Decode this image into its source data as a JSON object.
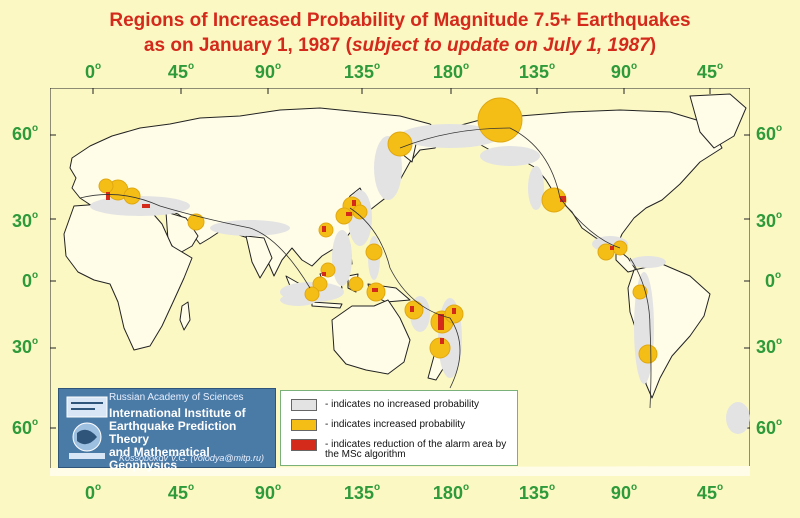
{
  "title": {
    "line1": "Regions of Increased Probability of Magnitude 7.5+ Earthquakes",
    "line2_main": "as on January 1, 1987 (",
    "line2_italic": "subject to update on July 1, 1987",
    "line2_end": ")"
  },
  "axes": {
    "lon_top": [
      "0",
      "45",
      "90",
      "135",
      "180",
      "135",
      "90",
      "45"
    ],
    "lon_bottom": [
      "0",
      "45",
      "90",
      "135",
      "180",
      "135",
      "90",
      "45"
    ],
    "lat_left": [
      "60",
      "30",
      "0",
      "30",
      "60"
    ],
    "lat_right": [
      "60",
      "30",
      "0",
      "30",
      "60"
    ],
    "degree_symbol": "o"
  },
  "institute": {
    "academy": "Russian Academy of Sciences",
    "name_line1": "International Institute of",
    "name_line2": "Earthquake Prediction Theory",
    "name_line3": "and Mathematical Geophysics",
    "author": "Kossobokov V.G. (volodya@mitp.ru)"
  },
  "legend": {
    "items": [
      {
        "label": "- indicates no increased probability",
        "color": "#e3e3e3"
      },
      {
        "label": "- indicates increased probability",
        "color": "#f5be16"
      },
      {
        "label": "- indicates reduction of the alarm area by the MSc algorithm",
        "color": "#d42a1c"
      }
    ]
  },
  "colors": {
    "background": "#fbf8c4",
    "title": "#d42a1c",
    "axis_labels": "#2e9a3a",
    "land": "#fffde8",
    "no_increase": "#e3e3e3",
    "increase": "#f5be16",
    "reduction": "#d42a1c"
  }
}
